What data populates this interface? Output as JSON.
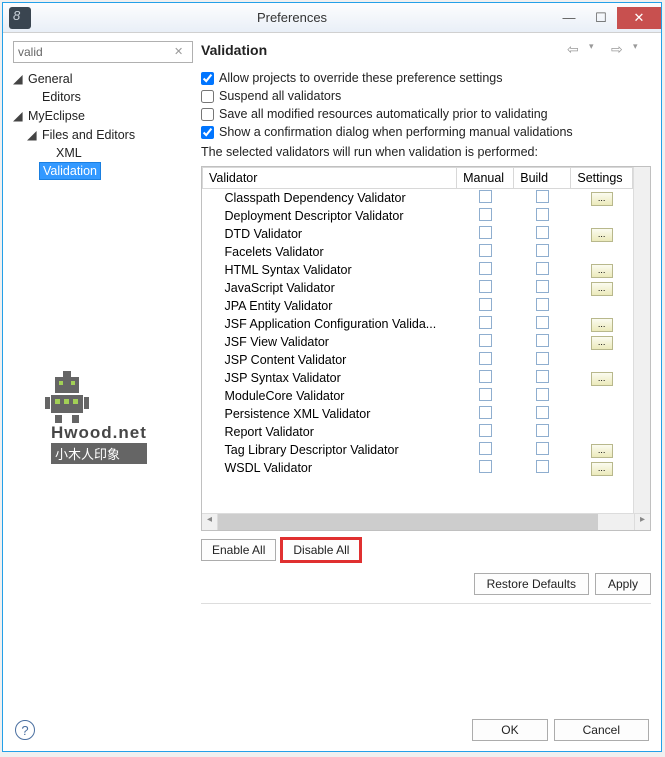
{
  "window": {
    "title": "Preferences"
  },
  "search": {
    "value": "valid"
  },
  "tree": {
    "general": "General",
    "editors": "Editors",
    "myeclipse": "MyEclipse",
    "files_editors": "Files and Editors",
    "xml": "XML",
    "validation": "Validation"
  },
  "section": {
    "title": "Validation"
  },
  "checks": {
    "override": {
      "label": "Allow projects to override these preference settings",
      "checked": true
    },
    "suspend": {
      "label": "Suspend all validators",
      "checked": false
    },
    "savemod": {
      "label": "Save all modified resources automatically prior to validating",
      "checked": false
    },
    "confirm": {
      "label": "Show a confirmation dialog when performing manual validations",
      "checked": true
    }
  },
  "hint": "The selected validators will run when validation is performed:",
  "columns": {
    "validator": "Validator",
    "manual": "Manual",
    "build": "Build",
    "settings": "Settings"
  },
  "validators": [
    {
      "name": "Classpath Dependency Validator",
      "setting": true
    },
    {
      "name": "Deployment Descriptor Validator",
      "setting": false
    },
    {
      "name": "DTD Validator",
      "setting": true
    },
    {
      "name": "Facelets Validator",
      "setting": false
    },
    {
      "name": "HTML Syntax Validator",
      "setting": true
    },
    {
      "name": "JavaScript Validator",
      "setting": true
    },
    {
      "name": "JPA Entity Validator",
      "setting": false
    },
    {
      "name": "JSF Application Configuration Valida...",
      "setting": true
    },
    {
      "name": "JSF View Validator",
      "setting": true
    },
    {
      "name": "JSP Content Validator",
      "setting": false
    },
    {
      "name": "JSP Syntax Validator",
      "setting": true
    },
    {
      "name": "ModuleCore Validator",
      "setting": false
    },
    {
      "name": "Persistence XML Validator",
      "setting": false
    },
    {
      "name": "Report Validator",
      "setting": false
    },
    {
      "name": "Tag Library Descriptor Validator",
      "setting": true
    },
    {
      "name": "WSDL Validator",
      "setting": true
    }
  ],
  "buttons": {
    "enable_all": "Enable All",
    "disable_all": "Disable All",
    "restore": "Restore Defaults",
    "apply": "Apply",
    "ok": "OK",
    "cancel": "Cancel"
  },
  "watermark": {
    "line1": "Hwood.net",
    "line2": "小木人印象"
  },
  "colors": {
    "accent": "#3399ff",
    "close": "#c8504f",
    "highlight": "#e03030"
  }
}
